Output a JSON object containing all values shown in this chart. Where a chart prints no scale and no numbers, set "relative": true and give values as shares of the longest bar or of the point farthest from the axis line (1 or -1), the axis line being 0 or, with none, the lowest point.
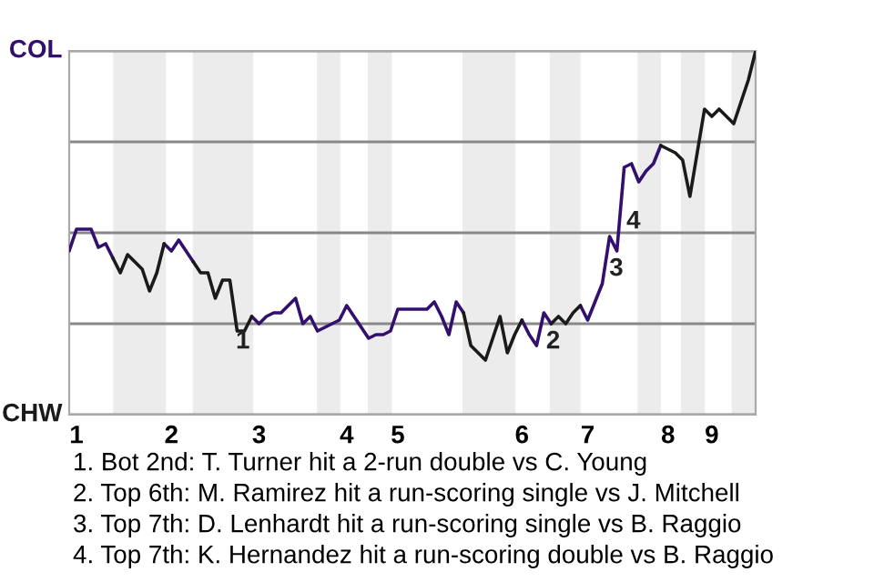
{
  "chart_data": {
    "type": "line",
    "relative": true,
    "categories": [
      null,
      "1",
      null,
      null,
      null,
      null,
      null,
      null,
      null,
      null,
      null,
      null,
      null,
      null,
      "2",
      null,
      null,
      null,
      null,
      null,
      null,
      null,
      null,
      null,
      null,
      null,
      "3",
      null,
      null,
      null,
      null,
      null,
      null,
      null,
      null,
      null,
      null,
      null,
      "4",
      null,
      null,
      null,
      null,
      null,
      null,
      "5",
      null,
      null,
      null,
      null,
      null,
      null,
      null,
      null,
      null,
      null,
      null,
      null,
      null,
      null,
      null,
      null,
      "6",
      null,
      null,
      null,
      null,
      null,
      null,
      null,
      null,
      "7",
      null,
      null,
      null,
      null,
      null,
      null,
      null,
      null,
      null,
      null,
      "8",
      null,
      null,
      null,
      null,
      null,
      "9",
      null,
      null,
      null,
      null,
      null,
      null
    ],
    "grid": "y",
    "marker": "none",
    "line_style": "solid",
    "series": [
      {
        "color": "#33106e",
        "values": [
          0.45,
          0.51,
          0.51,
          0.51,
          0.46,
          0.47,
          0.43,
          null,
          null,
          null,
          null,
          null,
          null,
          0.47,
          0.45,
          0.48,
          0.45,
          0.42,
          null,
          null,
          null,
          null,
          null,
          null,
          null,
          0.27,
          0.25,
          0.27,
          0.28,
          0.28,
          0.3,
          0.32,
          0.25,
          0.27,
          0.23,
          0.24,
          0.25,
          0.26,
          0.3,
          0.27,
          0.24,
          0.21,
          0.22,
          0.22,
          0.23,
          0.29,
          0.29,
          0.29,
          0.29,
          0.29,
          0.31,
          0.27,
          0.22,
          0.31,
          0.28,
          null,
          null,
          null,
          null,
          null,
          null,
          null,
          0.26,
          0.22,
          0.19,
          0.28,
          0.25,
          null,
          null,
          null,
          0.3,
          0.26,
          0.31,
          0.36,
          0.49,
          0.45,
          0.68,
          0.69,
          0.64,
          0.67,
          0.69,
          0.74,
          null,
          null,
          null,
          null,
          null,
          null,
          null,
          null,
          null,
          null,
          null,
          null,
          null
        ]
      },
      {
        "color": "#1a1a1a",
        "values": [
          null,
          null,
          null,
          null,
          null,
          null,
          0.43,
          0.39,
          0.44,
          0.42,
          0.4,
          0.34,
          0.39,
          0.47,
          null,
          null,
          null,
          0.42,
          0.39,
          0.39,
          0.32,
          0.37,
          0.37,
          0.23,
          0.23,
          0.27,
          null,
          null,
          null,
          null,
          null,
          null,
          null,
          null,
          null,
          null,
          null,
          null,
          null,
          null,
          null,
          null,
          null,
          null,
          null,
          null,
          null,
          null,
          null,
          null,
          null,
          null,
          null,
          null,
          0.28,
          0.19,
          0.17,
          0.15,
          0.21,
          0.27,
          0.17,
          0.22,
          0.26,
          null,
          null,
          null,
          0.25,
          0.27,
          0.25,
          0.28,
          0.3,
          null,
          null,
          null,
          null,
          null,
          null,
          null,
          null,
          null,
          null,
          0.74,
          0.73,
          0.72,
          0.7,
          0.6,
          0.72,
          0.84,
          0.82,
          0.84,
          0.82,
          0.8,
          0.86,
          0.92,
          1.0
        ]
      }
    ],
    "annotations": [
      "COL",
      "CHW",
      "1",
      "2",
      "3",
      "4",
      "1. Bot 2nd: T. Turner hit a 2-run double vs C. Young",
      "2. Top 6th: M. Ramirez hit a run-scoring single vs J. Mitchell",
      "3. Top 7th: D. Lenhardt hit a run-scoring single vs B. Raggio",
      "4. Top 7th: K. Hernandez hit a run-scoring double vs B. Raggio"
    ]
  }
}
